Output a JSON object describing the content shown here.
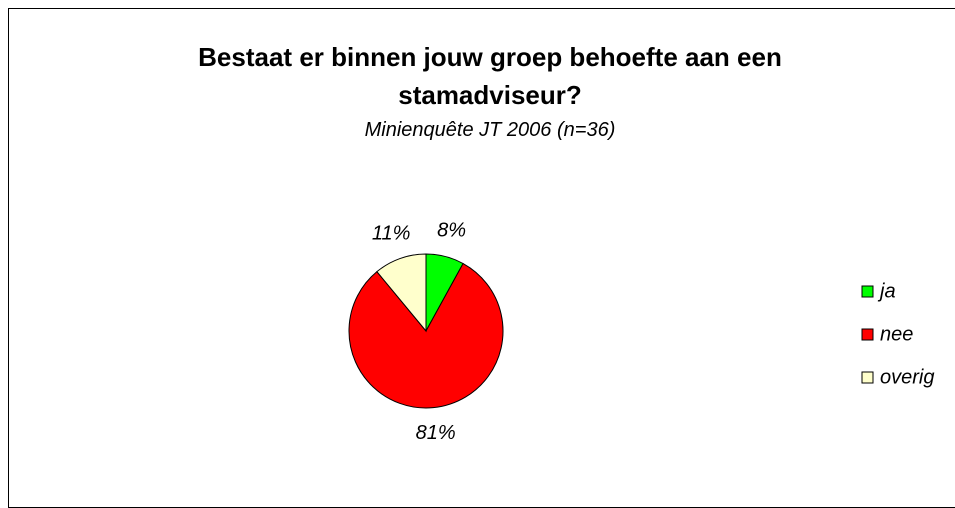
{
  "chart_data": {
    "type": "pie",
    "title": "Bestaat er binnen jouw groep behoefte aan een stamadviseur?",
    "subtitle": "Minienquête JT 2006 (n=36)",
    "categories": [
      "ja",
      "nee",
      "overig"
    ],
    "values": [
      8,
      81,
      11
    ],
    "value_labels": [
      "8%",
      "81%",
      "11%"
    ],
    "colors": [
      "#00ff00",
      "#ff0000",
      "#ffffcc"
    ],
    "legend": "right"
  }
}
